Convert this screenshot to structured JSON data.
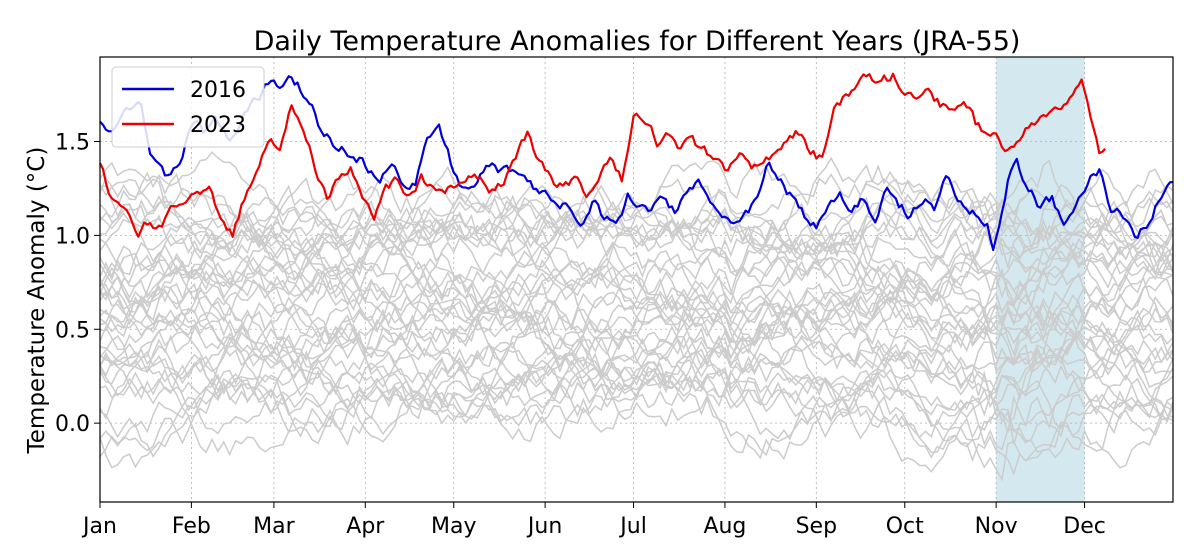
{
  "chart_data": {
    "type": "line",
    "title": "Daily Temperature Anomalies for Different Years (JRA-55)",
    "xlabel": "",
    "ylabel": "Temperature Anomaly (°C)",
    "xlim": [
      1,
      365
    ],
    "ylim": [
      -0.42,
      1.95
    ],
    "x_ticks": [
      {
        "label": "Jan",
        "day": 1
      },
      {
        "label": "Feb",
        "day": 32
      },
      {
        "label": "Mar",
        "day": 60
      },
      {
        "label": "Apr",
        "day": 91
      },
      {
        "label": "May",
        "day": 121
      },
      {
        "label": "Jun",
        "day": 152
      },
      {
        "label": "Jul",
        "day": 182
      },
      {
        "label": "Aug",
        "day": 213
      },
      {
        "label": "Sep",
        "day": 244
      },
      {
        "label": "Oct",
        "day": 274
      },
      {
        "label": "Nov",
        "day": 305
      },
      {
        "label": "Dec",
        "day": 335
      }
    ],
    "y_ticks": [
      {
        "label": "0.0",
        "value": 0.0
      },
      {
        "label": "0.5",
        "value": 0.5
      },
      {
        "label": "1.0",
        "value": 1.0
      },
      {
        "label": "1.5",
        "value": 1.5
      }
    ],
    "grid": true,
    "legend": {
      "location": "top-left",
      "entries": [
        "2016",
        "2023"
      ]
    },
    "highlight_span": {
      "start_day": 305,
      "end_day": 335,
      "color": "#d4e9ef"
    },
    "colors": {
      "2016": "#0000dd",
      "2023": "#ee0000",
      "background_years": "#cccccc"
    },
    "background_years": {
      "count": 40,
      "base_min": 0.05,
      "base_max": 1.2,
      "note": "many other years, drawn in light gray"
    },
    "series": [
      {
        "name": "2016",
        "x": [
          1,
          5,
          10,
          15,
          18,
          22,
          25,
          28,
          32,
          36,
          40,
          45,
          48,
          52,
          56,
          60,
          62,
          65,
          68,
          72,
          75,
          80,
          85,
          90,
          93,
          96,
          100,
          104,
          108,
          112,
          116,
          118,
          121,
          124,
          128,
          132,
          136,
          140,
          144,
          148,
          152,
          156,
          160,
          164,
          168,
          172,
          176,
          180,
          184,
          188,
          192,
          196,
          200,
          204,
          208,
          212,
          216,
          220,
          224,
          228,
          232,
          236,
          240,
          244,
          248,
          252,
          256,
          260,
          264,
          268,
          272,
          276,
          280,
          284,
          288,
          292,
          296,
          300,
          302,
          304,
          306,
          308,
          310,
          312,
          316,
          320,
          324,
          328,
          332,
          336,
          340,
          344,
          348,
          352,
          356,
          360,
          365
        ],
        "y": [
          1.6,
          1.55,
          1.72,
          1.7,
          1.45,
          1.33,
          1.3,
          1.38,
          1.6,
          1.55,
          1.65,
          1.5,
          1.55,
          1.7,
          1.75,
          1.85,
          1.8,
          1.85,
          1.8,
          1.72,
          1.6,
          1.5,
          1.45,
          1.4,
          1.35,
          1.25,
          1.4,
          1.25,
          1.3,
          1.5,
          1.6,
          1.5,
          1.35,
          1.25,
          1.3,
          1.38,
          1.35,
          1.35,
          1.3,
          1.25,
          1.22,
          1.18,
          1.15,
          1.05,
          1.2,
          1.1,
          1.05,
          1.2,
          1.15,
          1.1,
          1.2,
          1.12,
          1.25,
          1.3,
          1.2,
          1.1,
          1.05,
          1.1,
          1.2,
          1.4,
          1.3,
          1.2,
          1.1,
          1.05,
          1.15,
          1.2,
          1.15,
          1.2,
          1.1,
          1.25,
          1.15,
          1.1,
          1.2,
          1.15,
          1.3,
          1.2,
          1.15,
          1.1,
          1.05,
          0.9,
          1.0,
          1.2,
          1.35,
          1.4,
          1.25,
          1.15,
          1.2,
          1.05,
          1.15,
          1.3,
          1.35,
          1.15,
          1.1,
          1.0,
          1.05,
          1.2,
          1.3
        ]
      },
      {
        "name": "2023",
        "x": [
          1,
          4,
          8,
          12,
          14,
          18,
          22,
          26,
          30,
          34,
          38,
          42,
          46,
          50,
          54,
          58,
          62,
          66,
          70,
          74,
          78,
          82,
          86,
          90,
          94,
          98,
          102,
          106,
          110,
          114,
          118,
          122,
          126,
          130,
          134,
          138,
          142,
          146,
          150,
          154,
          158,
          162,
          166,
          170,
          174,
          178,
          182,
          186,
          190,
          194,
          198,
          202,
          206,
          210,
          214,
          218,
          222,
          226,
          230,
          234,
          238,
          242,
          246,
          250,
          254,
          258,
          262,
          266,
          270,
          274,
          278,
          282,
          286,
          290,
          294,
          298,
          302,
          306,
          310,
          314,
          318,
          322,
          326,
          330,
          334,
          338,
          340,
          342
        ],
        "y": [
          1.4,
          1.25,
          1.2,
          1.1,
          1.0,
          1.08,
          1.05,
          1.15,
          1.2,
          1.2,
          1.25,
          1.1,
          1.0,
          1.2,
          1.35,
          1.5,
          1.5,
          1.7,
          1.55,
          1.35,
          1.2,
          1.3,
          1.35,
          1.2,
          1.1,
          1.25,
          1.3,
          1.2,
          1.3,
          1.25,
          1.22,
          1.27,
          1.3,
          1.33,
          1.25,
          1.3,
          1.4,
          1.55,
          1.38,
          1.3,
          1.25,
          1.3,
          1.2,
          1.25,
          1.4,
          1.3,
          1.65,
          1.6,
          1.5,
          1.55,
          1.45,
          1.5,
          1.45,
          1.4,
          1.35,
          1.4,
          1.35,
          1.4,
          1.45,
          1.5,
          1.55,
          1.45,
          1.4,
          1.65,
          1.75,
          1.8,
          1.85,
          1.8,
          1.85,
          1.75,
          1.7,
          1.8,
          1.7,
          1.65,
          1.75,
          1.6,
          1.55,
          1.5,
          1.45,
          1.55,
          1.6,
          1.65,
          1.7,
          1.75,
          1.85,
          1.6,
          1.45,
          1.45
        ]
      }
    ]
  }
}
